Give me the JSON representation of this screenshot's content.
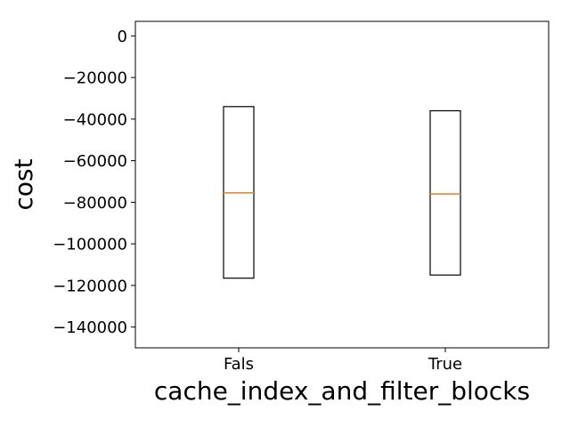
{
  "chart_data": {
    "type": "box",
    "title": "",
    "xlabel": "cache_index_and_filter_blocks",
    "ylabel": "cost",
    "categories": [
      "Fals",
      "True"
    ],
    "boxes": [
      {
        "category": "Fals",
        "q1": -116500,
        "median": -75500,
        "q3": -34000
      },
      {
        "category": "True",
        "q1": -115000,
        "median": -76000,
        "q3": -36000
      }
    ],
    "ylim": [
      -150000,
      7000
    ],
    "yticks": [
      0,
      -20000,
      -40000,
      -60000,
      -80000,
      -100000,
      -120000,
      -140000
    ],
    "ytick_labels": [
      "0",
      "−20000",
      "−40000",
      "−60000",
      "−80000",
      "−100000",
      "−120000",
      "−140000"
    ],
    "grid": false,
    "legend": "none",
    "colors": {
      "box_edge": "#000000",
      "median": "#e08a3c",
      "axes": "#000000",
      "background": "#ffffff"
    }
  }
}
